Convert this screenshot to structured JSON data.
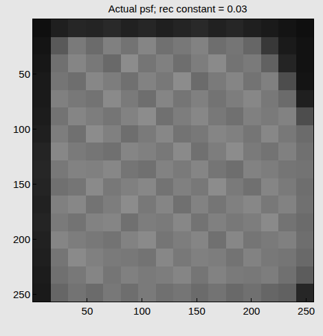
{
  "chart_data": {
    "type": "heatmap",
    "title": "Actual psf; rec constant = 0.03",
    "x": [
      8.5,
      24.5,
      40.5,
      56.5,
      72.5,
      88.5,
      104.5,
      120.5,
      136.5,
      152.5,
      168.5,
      184.5,
      200.5,
      216.5,
      232.5,
      248.5
    ],
    "y": [
      8.5,
      24.5,
      40.5,
      56.5,
      72.5,
      88.5,
      104.5,
      120.5,
      136.5,
      152.5,
      168.5,
      184.5,
      200.5,
      216.5,
      232.5,
      248.5
    ],
    "cells": [
      [
        0.06,
        0.12,
        0.15,
        0.14,
        0.16,
        0.13,
        0.15,
        0.12,
        0.14,
        0.16,
        0.13,
        0.15,
        0.12,
        0.1,
        0.08,
        0.06
      ],
      [
        0.08,
        0.35,
        0.48,
        0.42,
        0.5,
        0.45,
        0.52,
        0.44,
        0.47,
        0.51,
        0.43,
        0.46,
        0.4,
        0.22,
        0.1,
        0.07
      ],
      [
        0.09,
        0.44,
        0.52,
        0.47,
        0.41,
        0.55,
        0.46,
        0.5,
        0.43,
        0.49,
        0.54,
        0.45,
        0.48,
        0.38,
        0.14,
        0.07
      ],
      [
        0.1,
        0.46,
        0.43,
        0.53,
        0.49,
        0.44,
        0.51,
        0.47,
        0.55,
        0.42,
        0.48,
        0.52,
        0.45,
        0.5,
        0.3,
        0.08
      ],
      [
        0.1,
        0.5,
        0.47,
        0.45,
        0.54,
        0.48,
        0.43,
        0.52,
        0.46,
        0.5,
        0.45,
        0.49,
        0.53,
        0.47,
        0.42,
        0.12
      ],
      [
        0.11,
        0.45,
        0.52,
        0.49,
        0.46,
        0.51,
        0.55,
        0.44,
        0.49,
        0.53,
        0.47,
        0.44,
        0.5,
        0.48,
        0.51,
        0.3
      ],
      [
        0.12,
        0.49,
        0.44,
        0.55,
        0.5,
        0.43,
        0.48,
        0.53,
        0.45,
        0.47,
        0.52,
        0.5,
        0.46,
        0.53,
        0.47,
        0.42
      ],
      [
        0.14,
        0.53,
        0.48,
        0.46,
        0.44,
        0.52,
        0.5,
        0.47,
        0.54,
        0.44,
        0.49,
        0.55,
        0.48,
        0.45,
        0.5,
        0.44
      ],
      [
        0.15,
        0.47,
        0.51,
        0.5,
        0.53,
        0.46,
        0.44,
        0.51,
        0.48,
        0.52,
        0.46,
        0.43,
        0.51,
        0.49,
        0.46,
        0.45
      ],
      [
        0.14,
        0.44,
        0.46,
        0.54,
        0.47,
        0.5,
        0.53,
        0.45,
        0.5,
        0.47,
        0.55,
        0.48,
        0.44,
        0.52,
        0.48,
        0.43
      ],
      [
        0.13,
        0.5,
        0.53,
        0.45,
        0.49,
        0.55,
        0.47,
        0.52,
        0.44,
        0.51,
        0.46,
        0.5,
        0.53,
        0.47,
        0.51,
        0.44
      ],
      [
        0.14,
        0.48,
        0.45,
        0.51,
        0.52,
        0.44,
        0.49,
        0.48,
        0.53,
        0.45,
        0.5,
        0.47,
        0.49,
        0.54,
        0.45,
        0.42
      ],
      [
        0.13,
        0.52,
        0.49,
        0.47,
        0.45,
        0.51,
        0.54,
        0.46,
        0.49,
        0.52,
        0.44,
        0.53,
        0.46,
        0.48,
        0.5,
        0.43
      ],
      [
        0.12,
        0.46,
        0.54,
        0.5,
        0.48,
        0.47,
        0.45,
        0.53,
        0.47,
        0.5,
        0.49,
        0.45,
        0.51,
        0.47,
        0.46,
        0.41
      ],
      [
        0.11,
        0.44,
        0.47,
        0.52,
        0.46,
        0.5,
        0.48,
        0.49,
        0.52,
        0.46,
        0.51,
        0.48,
        0.47,
        0.49,
        0.44,
        0.36
      ],
      [
        0.1,
        0.4,
        0.45,
        0.42,
        0.47,
        0.43,
        0.48,
        0.44,
        0.46,
        0.42,
        0.45,
        0.41,
        0.44,
        0.4,
        0.38,
        0.15
      ]
    ],
    "zlim": [
      0,
      1
    ],
    "xlim": [
      0.5,
      256.5
    ],
    "ylim": [
      256.5,
      0.5
    ],
    "xticks": [
      50,
      100,
      150,
      200,
      250
    ],
    "yticks": [
      50,
      100,
      150,
      200,
      250
    ]
  }
}
